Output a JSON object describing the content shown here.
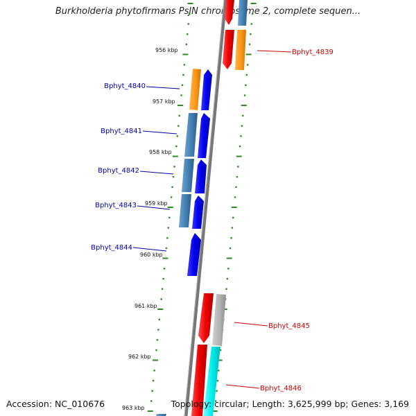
{
  "title": "Burkholderia phytofirmans PsJN chromosome 2, complete sequen...",
  "footer": {
    "accession": "Accession: NC_010676",
    "topology": "Topology: circular; Length: 3,625,999 bp; Genes: 3,169"
  },
  "kbp_labels": [
    "956 kbp",
    "957 kbp",
    "958 kbp",
    "959 kbp",
    "960 kbp",
    "961 kbp",
    "962 kbp",
    "963 kbp"
  ],
  "genes": [
    {
      "name": "Bphyt_4839",
      "strand": "+"
    },
    {
      "name": "Bphyt_4840",
      "strand": "-"
    },
    {
      "name": "Bphyt_4841",
      "strand": "-"
    },
    {
      "name": "Bphyt_4842",
      "strand": "-"
    },
    {
      "name": "Bphyt_4843",
      "strand": "-"
    },
    {
      "name": "Bphyt_4844",
      "strand": "-"
    },
    {
      "name": "Bphyt_4845",
      "strand": "+"
    },
    {
      "name": "Bphyt_4846",
      "strand": "+"
    }
  ],
  "colors": {
    "backbone": "#777777",
    "tick": "#2e8b22",
    "minus_cds": "#0000ee",
    "plus_cds": "#ee0000",
    "gene_orange": "#ff9a1a",
    "gene_steelblue": "#4682b4",
    "gene_gray": "#b4b4b4",
    "gene_cyan": "#00eeee",
    "label_minus": "#0000aa",
    "label_plus": "#cc0000"
  }
}
